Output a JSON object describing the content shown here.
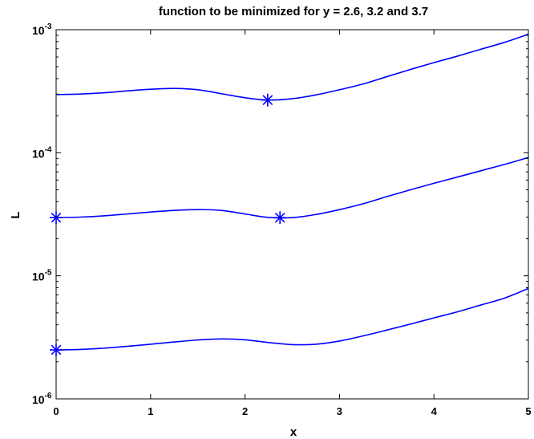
{
  "chart_data": {
    "type": "line",
    "title": "function to be minimized for y = 2.6, 3.2 and 3.7",
    "xlabel": "x",
    "ylabel": "L",
    "xlim": [
      0,
      5
    ],
    "ylim": [
      1e-06,
      0.001
    ],
    "yscale": "log",
    "grid": false,
    "line_color": "#0000ff",
    "x_ticks": [
      {
        "value": 0,
        "label": "0"
      },
      {
        "value": 1,
        "label": "1"
      },
      {
        "value": 2,
        "label": "2"
      },
      {
        "value": 3,
        "label": "3"
      },
      {
        "value": 4,
        "label": "4"
      },
      {
        "value": 5,
        "label": "5"
      }
    ],
    "y_ticks": [
      {
        "value": 1e-06,
        "base": "10",
        "exp": "-6"
      },
      {
        "value": 1e-05,
        "base": "10",
        "exp": "-5"
      },
      {
        "value": 0.0001,
        "base": "10",
        "exp": "-4"
      },
      {
        "value": 0.001,
        "base": "10",
        "exp": "-3"
      }
    ],
    "x": [
      0,
      0.25,
      0.5,
      0.75,
      1.0,
      1.25,
      1.5,
      1.75,
      2.0,
      2.25,
      2.5,
      2.75,
      3.0,
      3.25,
      3.5,
      3.75,
      4.0,
      4.25,
      4.5,
      4.75,
      5.0
    ],
    "series": [
      {
        "values": [
          0.000297,
          0.0003,
          0.000307,
          0.000318,
          0.000328,
          0.000333,
          0.000325,
          0.000302,
          0.00028,
          0.000268,
          0.000275,
          0.000295,
          0.000325,
          0.000362,
          0.000415,
          0.000475,
          0.00054,
          0.00061,
          0.000695,
          0.00079,
          0.00092
        ],
        "minimum": {
          "x": 2.24,
          "y": 0.000268
        }
      },
      {
        "values": [
          2.97e-05,
          3e-05,
          3.07e-05,
          3.18e-05,
          3.3e-05,
          3.4e-05,
          3.45e-05,
          3.4e-05,
          3.18e-05,
          2.98e-05,
          2.97e-05,
          3.15e-05,
          3.45e-05,
          3.85e-05,
          4.4e-05,
          5e-05,
          5.65e-05,
          6.35e-05,
          7.15e-05,
          8.05e-05,
          9.15e-05
        ],
        "minimum": {
          "x": 2.37,
          "y": 2.97e-05
        },
        "start_marker": {
          "x": 0,
          "y": 2.97e-05
        }
      },
      {
        "values": [
          2.5e-06,
          2.52e-06,
          2.58e-06,
          2.67e-06,
          2.78e-06,
          2.9e-06,
          3.01e-06,
          3.07e-06,
          3.02e-06,
          2.87e-06,
          2.76e-06,
          2.78e-06,
          2.95e-06,
          3.25e-06,
          3.62e-06,
          4.05e-06,
          4.55e-06,
          5.1e-06,
          5.8e-06,
          6.6e-06,
          7.9e-06
        ],
        "minimum": {
          "x": 0,
          "y": 2.5e-06
        }
      }
    ]
  }
}
